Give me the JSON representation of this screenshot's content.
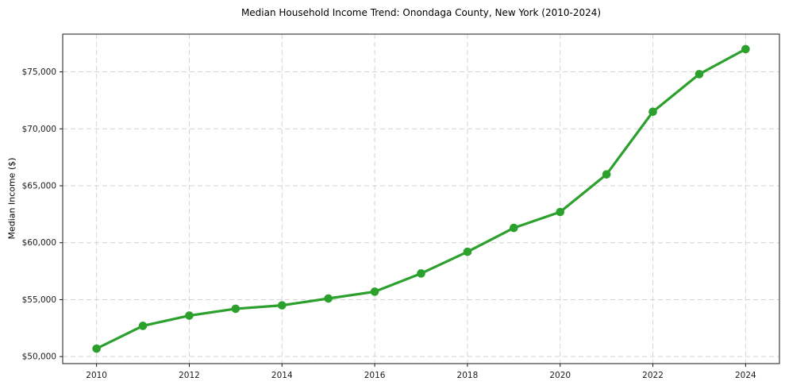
{
  "figure": {
    "title": "Median Household Income Trend: Onondaga County, New York (2010-2024)",
    "ylabel": "Median Income ($)"
  },
  "chart_data": {
    "type": "line",
    "title": "Median Household Income Trend: Onondaga County, New York (2010-2024)",
    "xlabel": "",
    "ylabel": "Median Income ($)",
    "x": [
      2010,
      2011,
      2012,
      2013,
      2014,
      2015,
      2016,
      2017,
      2018,
      2019,
      2020,
      2021,
      2022,
      2023,
      2024
    ],
    "series": [
      {
        "name": "Median household income",
        "values": [
          50700,
          52700,
          53600,
          54200,
          54500,
          55100,
          55700,
          57300,
          59200,
          61300,
          62700,
          66000,
          71500,
          74800,
          77000
        ]
      }
    ],
    "x_ticks": [
      2010,
      2012,
      2014,
      2016,
      2018,
      2020,
      2022,
      2024
    ],
    "x_tick_labels": [
      "2010",
      "2012",
      "2014",
      "2016",
      "2018",
      "2020",
      "2022",
      "2024"
    ],
    "y_ticks": [
      50000,
      55000,
      60000,
      65000,
      70000,
      75000
    ],
    "y_tick_labels": [
      "$50,000",
      "$55,000",
      "$60,000",
      "$65,000",
      "$70,000",
      "$75,000"
    ],
    "xlim": [
      2009.27,
      2024.73
    ],
    "ylim": [
      49385,
      78315
    ],
    "grid": true,
    "grid_style": "dashed",
    "legend_position": "none",
    "colors": {
      "line": "#2ca02c",
      "marker": "#2ca02c",
      "grid": "#d3d3d3",
      "spine": "#1a1a1a",
      "background": "#ffffff"
    }
  }
}
